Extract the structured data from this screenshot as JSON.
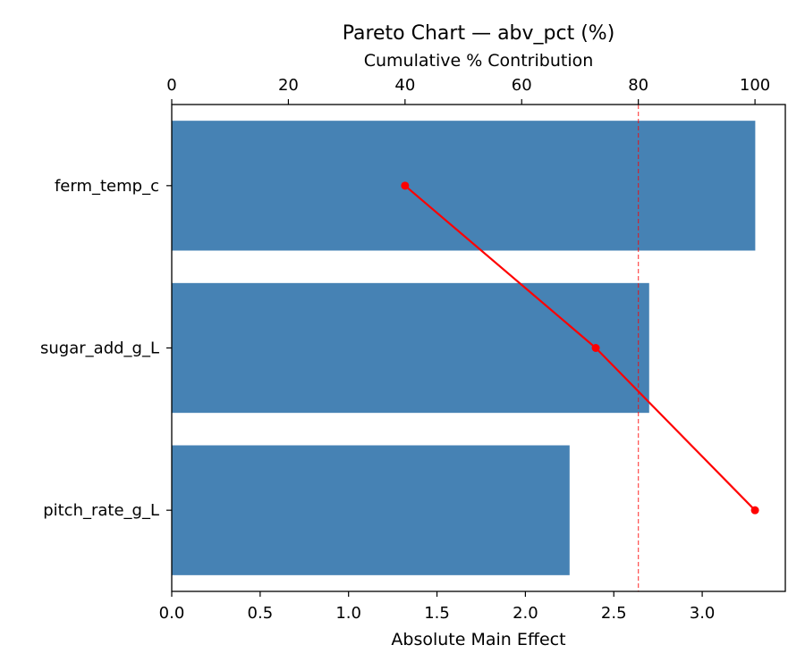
{
  "chart_data": {
    "type": "bar",
    "orientation": "horizontal",
    "title": "Pareto Chart — abv_pct (%)",
    "xlabel": "Absolute Main Effect",
    "ylabel": "",
    "secondary_xlabel": "Cumulative % Contribution",
    "categories": [
      "ferm_temp_c",
      "sugar_add_g_L",
      "pitch_rate_g_L"
    ],
    "values": [
      3.3,
      2.7,
      2.25
    ],
    "xlim": [
      0,
      3.47
    ],
    "xticks": [
      "0.0",
      "0.5",
      "1.0",
      "1.5",
      "2.0",
      "2.5",
      "3.0"
    ],
    "secondary_xlim": [
      0,
      105.2
    ],
    "secondary_xticks": [
      "0",
      "20",
      "40",
      "60",
      "80",
      "100"
    ],
    "cumulative_pct": [
      40.0,
      72.7,
      100.0
    ],
    "threshold_pct": 80,
    "grid": false,
    "colors": {
      "bars": "#4682b4",
      "cumulative_line": "#ff0000",
      "threshold_line": "#ff0000"
    }
  }
}
